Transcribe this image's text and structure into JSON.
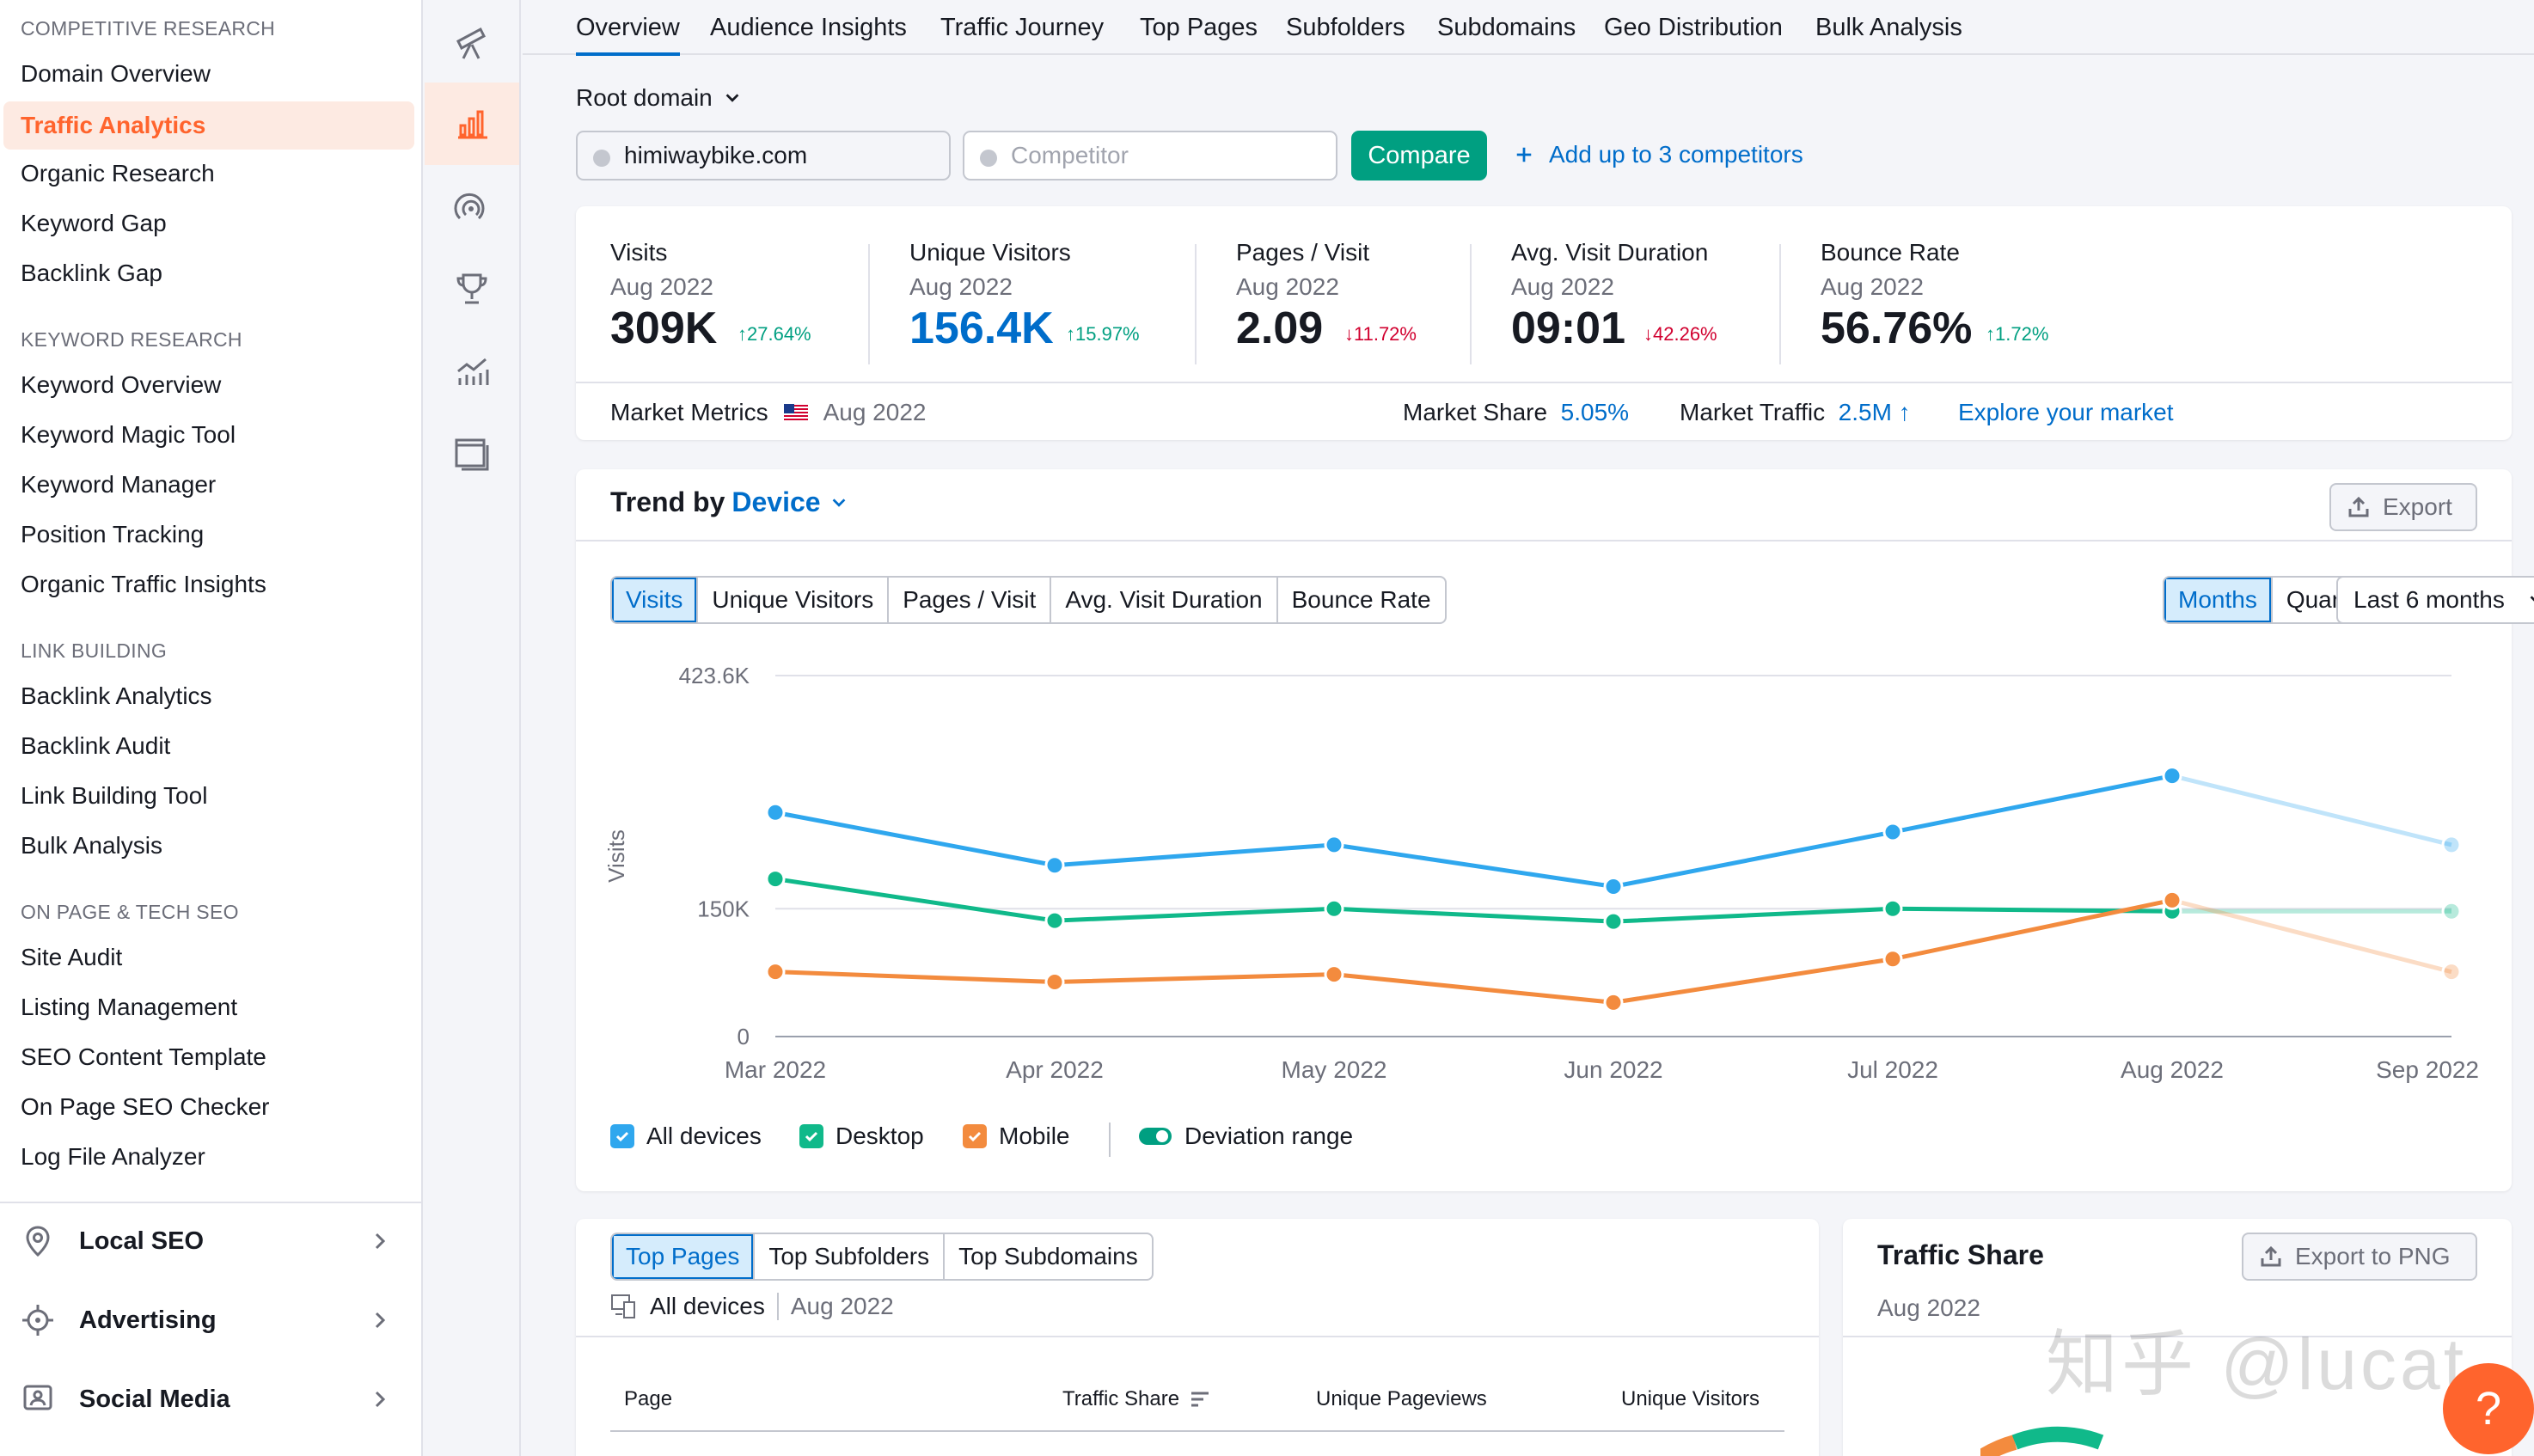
{
  "sidebar": {
    "sections": [
      {
        "heading": "COMPETITIVE RESEARCH",
        "items": [
          "Domain Overview",
          "Traffic Analytics",
          "Organic Research",
          "Keyword Gap",
          "Backlink Gap"
        ]
      },
      {
        "heading": "KEYWORD RESEARCH",
        "items": [
          "Keyword Overview",
          "Keyword Magic Tool",
          "Keyword Manager",
          "Position Tracking",
          "Organic Traffic Insights"
        ]
      },
      {
        "heading": "LINK BUILDING",
        "items": [
          "Backlink Analytics",
          "Backlink Audit",
          "Link Building Tool",
          "Bulk Analysis"
        ]
      },
      {
        "heading": "ON PAGE & TECH SEO",
        "items": [
          "Site Audit",
          "Listing Management",
          "SEO Content Template",
          "On Page SEO Checker",
          "Log File Analyzer"
        ]
      }
    ],
    "active_item": "Traffic Analytics",
    "groups": [
      {
        "label": "Local SEO",
        "icon": "location-pin-icon"
      },
      {
        "label": "Advertising",
        "icon": "target-icon"
      },
      {
        "label": "Social Media",
        "icon": "social-icon"
      }
    ]
  },
  "rail": {
    "icons": [
      "telescope-icon",
      "bar-chart-icon",
      "radar-icon",
      "trophy-icon",
      "trend-chart-icon",
      "window-icon"
    ],
    "active": "bar-chart-icon"
  },
  "tabs": [
    "Overview",
    "Audience Insights",
    "Traffic Journey",
    "Top Pages",
    "Subfolders",
    "Subdomains",
    "Geo Distribution",
    "Bulk Analysis"
  ],
  "active_tab": "Overview",
  "domain_bar": {
    "root_label": "Root domain",
    "domain_value": "himiwaybike.com",
    "competitor_placeholder": "Competitor",
    "compare_label": "Compare",
    "add_competitors_label": "Add up to 3 competitors"
  },
  "metrics": [
    {
      "label": "Visits",
      "date": "Aug 2022",
      "value": "309K",
      "change": "27.64%",
      "direction": "up"
    },
    {
      "label": "Unique Visitors",
      "date": "Aug 2022",
      "value": "156.4K",
      "change": "15.97%",
      "direction": "up"
    },
    {
      "label": "Pages / Visit",
      "date": "Aug 2022",
      "value": "2.09",
      "change": "11.72%",
      "direction": "down"
    },
    {
      "label": "Avg. Visit Duration",
      "date": "Aug 2022",
      "value": "09:01",
      "change": "42.26%",
      "direction": "down"
    },
    {
      "label": "Bounce Rate",
      "date": "Aug 2022",
      "value": "56.76%",
      "change": "1.72%",
      "direction": "up"
    }
  ],
  "market": {
    "label": "Market Metrics",
    "date": "Aug 2022",
    "share_label": "Market Share",
    "share_value": "5.05%",
    "traffic_label": "Market Traffic",
    "traffic_value": "2.5M",
    "explore_label": "Explore your market"
  },
  "trend": {
    "title_prefix": "Trend by",
    "title_dimension": "Device",
    "export_label": "Export",
    "metric_tabs": [
      "Visits",
      "Unique Visitors",
      "Pages / Visit",
      "Avg. Visit Duration",
      "Bounce Rate"
    ],
    "active_metric": "Visits",
    "period_tabs": [
      "Months",
      "Quarters"
    ],
    "active_period": "Months",
    "range_label": "Last 6 months",
    "legend": [
      "All devices",
      "Desktop",
      "Mobile",
      "Deviation range"
    ]
  },
  "chart_data": {
    "type": "line",
    "x": [
      "Mar 2022",
      "Apr 2022",
      "May 2022",
      "Jun 2022",
      "Jul 2022",
      "Aug 2022",
      "Sep 2022"
    ],
    "ylabel": "Visits",
    "y_ticks": [
      "0",
      "150K",
      "423.6K"
    ],
    "ylim": [
      0,
      423600
    ],
    "series": [
      {
        "name": "All devices",
        "color": "#2fa7ee",
        "values": [
          263000,
          201000,
          225000,
          176000,
          240000,
          306000,
          225000
        ]
      },
      {
        "name": "Desktop",
        "color": "#10b98a",
        "values": [
          185000,
          136000,
          150000,
          135000,
          150000,
          147000,
          147000
        ]
      },
      {
        "name": "Mobile",
        "color": "#f38b3e",
        "values": [
          76000,
          64000,
          73000,
          40000,
          91000,
          160000,
          76000
        ]
      }
    ],
    "projected_last_point": true
  },
  "top_pages": {
    "tabs": [
      "Top Pages",
      "Top Subfolders",
      "Top Subdomains"
    ],
    "active": "Top Pages",
    "device": "All devices",
    "date": "Aug 2022",
    "columns": [
      "Page",
      "Traffic Share",
      "Unique Pageviews",
      "Unique Visitors"
    ]
  },
  "traffic_share": {
    "title": "Traffic Share",
    "date": "Aug 2022",
    "export_label": "Export to PNG"
  },
  "help_label": "?",
  "watermark": "知乎 @lucat"
}
